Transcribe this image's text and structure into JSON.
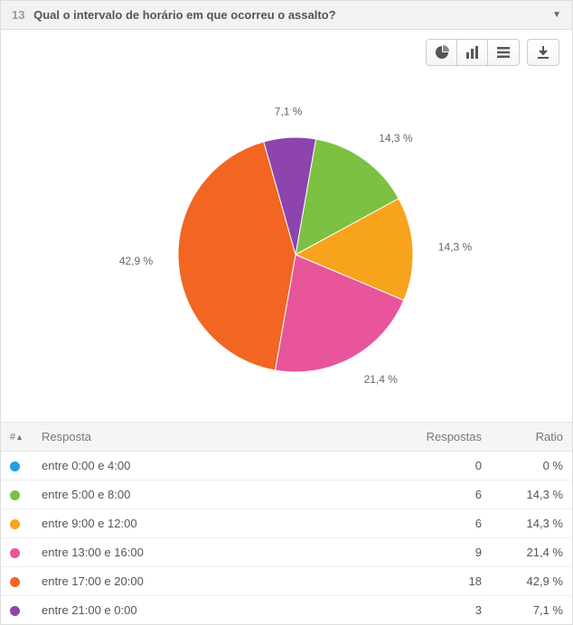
{
  "question": {
    "number": "13",
    "text": "Qual o intervalo de horário em que ocorreu o assalto?"
  },
  "toolbar": {
    "pie_icon": "pie-chart-icon",
    "bar_icon": "bar-chart-icon",
    "list_icon": "list-icon",
    "download_icon": "download-icon"
  },
  "chart": {
    "type": "pie",
    "radius": 130,
    "label_offset": 28,
    "background_color": "#ffffff",
    "label_color": "#666666",
    "label_fontsize": 12,
    "start_angle_deg": -80,
    "slices": [
      {
        "label": "entre 5:00 e 8:00",
        "value": 6,
        "ratio_text": "14,3 %",
        "pct": 14.2857,
        "color": "#7cc142"
      },
      {
        "label": "entre 9:00 e 12:00",
        "value": 6,
        "ratio_text": "14,3 %",
        "pct": 14.2857,
        "color": "#f7a31c"
      },
      {
        "label": "entre 13:00 e 16:00",
        "value": 9,
        "ratio_text": "21,4 %",
        "pct": 21.4286,
        "color": "#e8559b"
      },
      {
        "label": "entre 17:00 e 20:00",
        "value": 18,
        "ratio_text": "42,9 %",
        "pct": 42.8571,
        "color": "#f26522"
      },
      {
        "label": "entre 21:00 e 0:00",
        "value": 3,
        "ratio_text": "7,1 %",
        "pct": 7.1429,
        "color": "#8e44ad"
      }
    ]
  },
  "table": {
    "headers": {
      "index": "#",
      "answer": "Resposta",
      "count": "Respostas",
      "ratio": "Ratio"
    },
    "rows": [
      {
        "color": "#1ea1e0",
        "answer": "entre 0:00 e 4:00",
        "count": "0",
        "ratio": "0 %"
      },
      {
        "color": "#7cc142",
        "answer": "entre 5:00 e 8:00",
        "count": "6",
        "ratio": "14,3 %"
      },
      {
        "color": "#f7a31c",
        "answer": "entre 9:00 e 12:00",
        "count": "6",
        "ratio": "14,3 %"
      },
      {
        "color": "#e8559b",
        "answer": "entre 13:00 e 16:00",
        "count": "9",
        "ratio": "21,4 %"
      },
      {
        "color": "#f26522",
        "answer": "entre 17:00 e 20:00",
        "count": "18",
        "ratio": "42,9 %"
      },
      {
        "color": "#8e44ad",
        "answer": "entre 21:00 e 0:00",
        "count": "3",
        "ratio": "7,1 %"
      }
    ]
  }
}
